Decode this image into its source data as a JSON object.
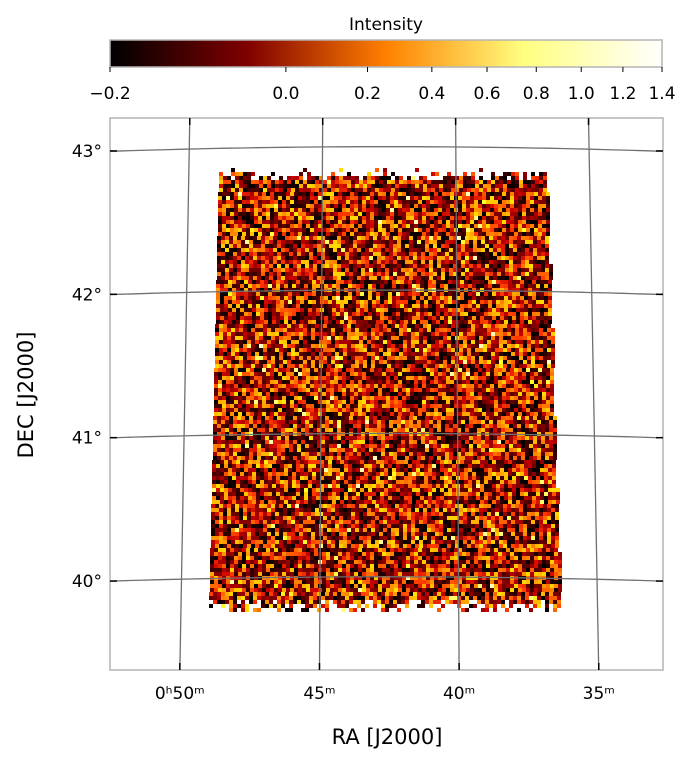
{
  "chart_data": {
    "type": "heatmap",
    "description_free": true,
    "colorbar": {
      "label": "Intensity",
      "ticks": [
        "−0.2",
        "0.0",
        "0.2",
        "0.4",
        "0.6",
        "0.8",
        "1.0",
        "1.2",
        "1.4"
      ],
      "tick_values": [
        -0.2,
        0.0,
        0.2,
        0.4,
        0.6,
        0.8,
        1.0,
        1.2,
        1.4
      ],
      "range": [
        -0.2,
        1.4
      ],
      "colormap": "afmhot"
    },
    "xlabel": "RA [J2000]",
    "ylabel": "DEC [J2000]",
    "x_ticks": [
      {
        "label": "0ʰ50ᵐ",
        "value_min": 50
      },
      {
        "label": "45ᵐ",
        "value_min": 45
      },
      {
        "label": "40ᵐ",
        "value_min": 40
      },
      {
        "label": "35ᵐ",
        "value_min": 35
      }
    ],
    "y_ticks": [
      {
        "label": "43°",
        "value_deg": 43
      },
      {
        "label": "42°",
        "value_deg": 42
      },
      {
        "label": "41°",
        "value_deg": 41
      },
      {
        "label": "40°",
        "value_deg": 40
      }
    ],
    "dec_range_deg": [
      39.35,
      43.2
    ],
    "ra_range_min": [
      52.5,
      32.7
    ],
    "grid": true,
    "map_dec_range_deg": [
      39.72,
      42.8
    ],
    "map_ra_range_min": [
      49.0,
      36.5
    ],
    "colors": {
      "frame": "#b4b4b4",
      "grid": "#707070"
    }
  }
}
